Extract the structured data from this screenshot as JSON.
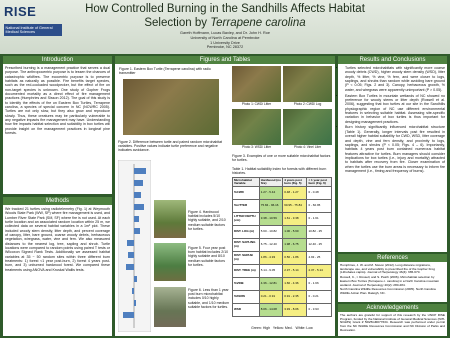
{
  "header": {
    "logo_left": "RISE",
    "logo_left_sub": "National Institute of General Medical Sciences",
    "title_main": "How Controlled Burning in the Sandhills Affects Habitat",
    "title_line2": "Selection by",
    "title_species": "Terrapene carolina",
    "authors": "Gareth Hoffmann, Lucas Baxley, and Dr. John H. Roe",
    "affiliation": "University of North Carolina at Pembroke",
    "address1": "1 University Drive",
    "address2": "Pembroke, NC 28372"
  },
  "introduction": {
    "heading": "Introduction",
    "text": "Prescribed burning is a management practice that serves a dual purpose. The anthropocentric purpose is to lessen the chances of catastrophic wildfires. The ecocentric purpose is to preserve habitats as naturally as possible. Fire benefits target species, such as the red-cockaded woodpecker, but the effect of fire on non-target species is unknown. One study of Gopher Frogs documented mortality as a direct effect of fire management practices (Humphries and Sisson 2012). The goal of this study is to identify the effects of fire on Eastern Box Turtles, Terrapene carolina, a species of special concern in NC (NCWRC 2005). Turtles are not only slow, but they also grow and reproduce slowly. Thus, these creatures may be particularly vulnerable to any negative impacts fire management may have. Understanding how fire impacts habitat selection and suitability in box turtles will provide insight on fire management practices in longleaf pine forests."
  },
  "methods": {
    "heading": "Methods",
    "text": "We tracked 21 turtles using radiotelemetry (Fig. 1) at Weymouth Woods State Park (WW, SP) where fire management is used, and Lumber River State Park (SM, SF) where fire is not used. At each turtle location and an associated random location within 25 m, we collected data on several habitat variables in a 1m² plot. These included woody stem density, litter depth, and percent coverage of canopy, litter, bare ground, coarse woody debris, herbaceous vegetation, wiregrass, water, vine and fern. We also measured distances to the nearest log, tree, sapling and shrub. Turtle locations were compared to random points using paired T tests or Wilcoxon Signed Rank Tests. Additionally we assessed habitat variables at 35 ~ 50 random sites within three different burn treatments: 1) forest <1 year post-burn, 2) forest 4 years post-burn, and 3) unburned hardwood forest. We compared these treatments using ANOVA and Kruskal Wallis tests."
  },
  "figures": {
    "heading": "Figures and Tables",
    "figure1": "Figure 1. Eastern Box Turtle (Terrapene carolina) with radio transmitter",
    "photos": [
      "Photo 1: CWD/ Litter",
      "Photo 2: CWD/ Log",
      "Photo 3: WSD/ Litter",
      "Photo 4: Vine/ Liter"
    ],
    "figure2": "Figure 2. Difference between turtle and paired random microhabitat variables. Positive values indicate turtle preference and negative indicates avoidance.",
    "figure3": "Figure 3. Examples of one or more suitable microhabitat factors for turtles.",
    "figure4": "Figure 4. Hardwood habitat includes 5/10 highly suitable, and 2/10 medium suitable factors for turtles.",
    "figure5": "Figure 5. Four year post burn habitat includes 2/10 highly suitable and 8/10 medium suitable factors for turtles.",
    "figure6": "Figure 6. Less than 1 year post burn microhabitat includes 0/10 highly suitable, and 1/10 medium suitable factors for turtles."
  },
  "table": {
    "caption": "Table 1. Habitat suitability index for forests with different burn histories.",
    "columns": [
      "Microhabitat Variable",
      "Hardwood (no fire)",
      "4 years post burn (Fig. 5)",
      "< 1 year post burn (Fig. 6)"
    ],
    "rows": [
      [
        "%CWD",
        "1.27 - 5.44",
        "0.48 - 1.27",
        "0 - 0.48"
      ],
      [
        "%LITTER",
        "75.84 - 96.16",
        "60.95 - 75.84",
        "0 - 60.95"
      ],
      [
        "LITTER DEPTH (cm)",
        "3.38 - 10.59",
        "1.61 - 3.38",
        "0 - 1.61"
      ],
      [
        "DIST. LOG (m)",
        "5.60 - 10.82",
        "1.00 - 5.60",
        "10.82 - 25"
      ],
      [
        "DIST. SAPLING (m)",
        "6.75 - 12.40",
        "1.98 - 6.75",
        "12.40 - 25"
      ],
      [
        "DIST. SHRUB (m)",
        "1.86 - 4.93",
        "0.56 - 1.86",
        "4.93 - 25"
      ],
      [
        "DIST. TREE (m)",
        "5.14 - 9.05",
        "2.37 - 5.14",
        "2.37 - 5.14"
      ],
      [
        "%VINE",
        "4.36 - 12.81",
        "1.66 - 4.36",
        "0 - 1.66"
      ],
      [
        "%FERN",
        "0.21 - 0.91",
        "0.91 - 2.35",
        "0 - 0.21"
      ],
      [
        "WSD",
        "8.06 - 14.08",
        "3.93 - 8.06",
        "0 - 3.93"
      ]
    ],
    "cell_colors": [
      [
        "#b6dd8f",
        "#f5ee83",
        "#ffffff"
      ],
      [
        "#b6dd8f",
        "#f5ee83",
        "#ffffff"
      ],
      [
        "#b6dd8f",
        "#f5ee83",
        "#ffffff"
      ],
      [
        "#ffffff",
        "#b6dd8f",
        "#ffffff"
      ],
      [
        "#ffffff",
        "#b6dd8f",
        "#ffffff"
      ],
      [
        "#f5ee83",
        "#f5ee83",
        "#ffffff"
      ],
      [
        "#ffffff",
        "#f5ee83",
        "#f5ee83"
      ],
      [
        "#b6dd8f",
        "#f5ee83",
        "#ffffff"
      ],
      [
        "#f5ee83",
        "#f5ee83",
        "#ffffff"
      ],
      [
        "#b6dd8f",
        "#f5ee83",
        "#ffffff"
      ]
    ],
    "legend": "Green: High   Yellow: Med.   White: Low"
  },
  "results": {
    "heading": "Results and Conclusions",
    "bullets": [
      "Turtles selected microhabitats with significantly more coarse woody debris (CWD), higher woody stem density (WSD), litter depth, % litter, % vine, % fern, and were closer to logs, saplings, and shrubs than random while avoiding bare ground (P < 0.05; Figs. 2 and 3). Canopy, herbaceous growth, % water, and wiregrass were apparently unimportant (P > 0.05).",
      "Eastern Box Turtles in mountain wetlands of NC showed no preference for woody stems or litter depth (Rossell et al. 2006), suggesting that box turtles at our site in the Sandhills physiographic region of NC use different environmental features in selecting suitable habitat. Assessing site-specific variation in behavior of box turtles is thus important for designing management practices.",
      "Burn history significantly influenced microhabitat structure (Table 1). Generally, longer intervals post fire resulted in overall higher habitat suitability for CWD, WSD, litter coverage and depth, vine and fern density, and proximity to logs, saplings, and shrubs (P < 0.05; Figs. 4 – 6). Importantly, habitats 4 years post burn contained numerous habitat features attractive for turtles. Burn managers should consider implications for box turtles (i.e., injury and mortality) attracted to habitats after recovery from fire. Closer examination of when the turtles use the burn areas is necessary to inform fire management (i.e., timing and frequency of burns)."
    ]
  },
  "references": {
    "heading": "References",
    "items": [
      "Humphries, J. W. and M. Sisson (2012). Long distance migrations, landscape use, and vulnerability to prescribed fire of the Gopher Frog (Lithobates capito). Journal of Herpetology 46(4): 665-670.",
      "Rossell, C., I. Rossell, and S. Patch (2006). Microhabitat selection by Eastern Box Turtles (Terrapene c. carolina) in a North Carolina mountain wetland. Journal of Herpetology 40(2): 280-284.",
      "North Carolina Wildlife Resources Commission (2005). North Carolina Wildlife Action Plan. Raleigh, NC."
    ]
  },
  "acknowledgements": {
    "heading": "Acknowledgements",
    "text": "The authors are grateful for support of this research by the UNCP RISE Program, funded by the National Institute of General Medical Sciences (NIH-NIGMS) Grant # 5R25GM077634. Research was performed under permit from the NC Wildlife Resources Commission and NC Division of Parks and Recreation."
  }
}
